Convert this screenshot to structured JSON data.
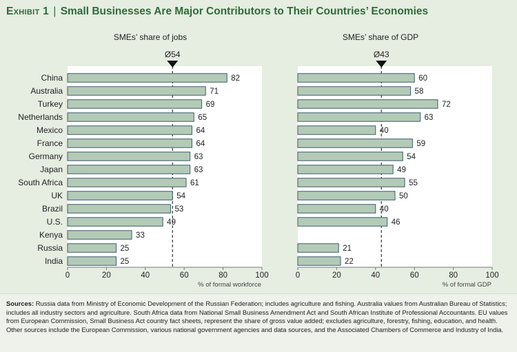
{
  "header": {
    "exhibit": "Exhibit 1",
    "separator": "|",
    "title": "Small Businesses Are Major Contributors to Their Countries’ Economies"
  },
  "colors": {
    "background": "#e6ede1",
    "plot_area": "#ffffff",
    "bar_fill": "#b3cbb6",
    "bar_stroke": "#3f5a6e",
    "title_green": "#2f6b3a"
  },
  "chart_data": [
    {
      "type": "bar",
      "orientation": "horizontal",
      "title": "SMEs’ share of jobs",
      "categories": [
        "China",
        "Australia",
        "Turkey",
        "Netherlands",
        "Mexico",
        "France",
        "Germany",
        "Japan",
        "South Africa",
        "UK",
        "Brazil",
        "U.S.",
        "Kenya",
        "Russia",
        "India"
      ],
      "values": [
        82,
        71,
        69,
        65,
        64,
        64,
        63,
        63,
        61,
        54,
        53,
        49,
        33,
        25,
        25
      ],
      "average": 54,
      "average_label": "Ø54",
      "xlim": [
        0,
        100
      ],
      "xticks": [
        "0",
        "20",
        "40",
        "60",
        "80",
        "100"
      ],
      "xlabel": "% of formal workforce"
    },
    {
      "type": "bar",
      "orientation": "horizontal",
      "title": "SMEs’ share of GDP",
      "categories": [
        "China",
        "Australia",
        "Turkey",
        "Netherlands",
        "Mexico",
        "France",
        "Germany",
        "Japan",
        "South Africa",
        "UK",
        "Brazil",
        "U.S.",
        "Kenya",
        "Russia",
        "India"
      ],
      "values": [
        60,
        58,
        72,
        63,
        40,
        59,
        54,
        49,
        55,
        50,
        40,
        46,
        null,
        21,
        22
      ],
      "average": 43,
      "average_label": "Ø43",
      "xlim": [
        0,
        100
      ],
      "xticks": [
        "0",
        "20",
        "40",
        "60",
        "80",
        "100"
      ],
      "xlabel": "% of formal GDP"
    }
  ],
  "sources": {
    "label": "Sources:",
    "text": "Russia data from Ministry of Economic Development of the Russian Federation; includes agriculture and fishing. Australia values from Australian Bureau of Statistics; includes all industry sectors and agriculture. South Africa data from National Small Business Amendment Act and South African Institute of Professional Accountants. EU values from European Commission, Small Business Act country fact sheets, represent the share of gross value added; excludes agriculture, forestry, fishing, education, and health. Other sources include the European Commission, various national government agencies and data sources, and the Associated Chambers of Commerce and Industry of India."
  }
}
